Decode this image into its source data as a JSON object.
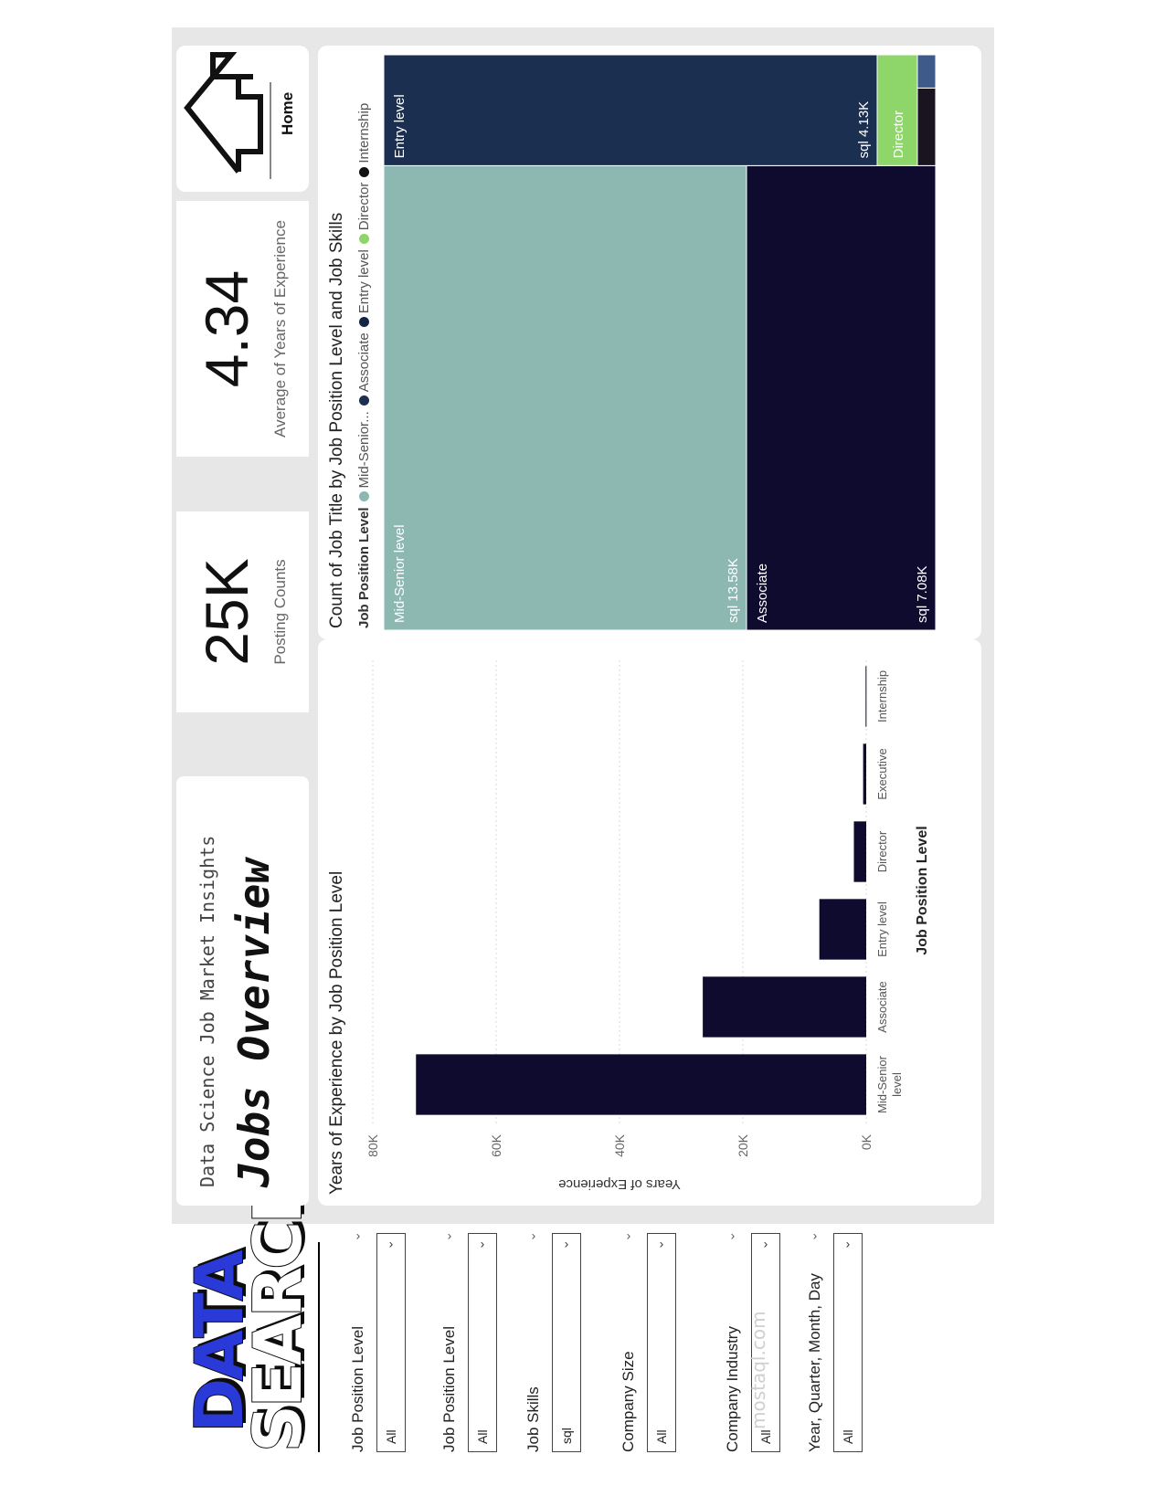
{
  "logo": {
    "line1": "DATA",
    "line2": "SEARCH"
  },
  "watermark": "mostaql.com",
  "filters": [
    {
      "label": "Job Position Level",
      "value": "All"
    },
    {
      "label": "Job Position Level",
      "value": "All"
    },
    {
      "label": "Job Skills",
      "value": "sql"
    },
    {
      "label": "Company Size",
      "value": "All"
    },
    {
      "label": "Company Industry",
      "value": "All"
    },
    {
      "label": "Year, Quarter, Month, Day",
      "value": "All"
    }
  ],
  "header": {
    "subtitle": "Data Science Job Market Insights",
    "title": "Jobs Overview",
    "home_label": "Home"
  },
  "kpis": [
    {
      "value": "25K",
      "label": "Posting Counts"
    },
    {
      "value": "4.34",
      "label": "Average of Years of Experience"
    }
  ],
  "colors": {
    "mid_senior": "#8cb8b1",
    "associate": "#0e0b2f",
    "entry": "#1b2f50",
    "director": "#8fd66a",
    "internship": "#1a1320",
    "bar": "#0e0b2f",
    "executive_tile": "#3e5a8a"
  },
  "bar_chart": {
    "title": "Years of Experience by Job Position Level",
    "chart_data": {
      "type": "bar",
      "title": "Years of Experience by Job Position Level",
      "xlabel": "Job Position Level",
      "ylabel": "Years of Experience",
      "categories": [
        "Mid-Senior level",
        "Associate",
        "Entry level",
        "Director",
        "Executive",
        "Internship"
      ],
      "values": [
        73000,
        26500,
        7600,
        2000,
        500,
        100
      ],
      "ylim": [
        0,
        80000
      ],
      "y_ticks": [
        "0K",
        "20K",
        "40K",
        "60K",
        "80K"
      ],
      "grid": true
    }
  },
  "treemap": {
    "title": "Count of Job Title by Job Position Level and Job Skills",
    "legend_title": "Job Position Level",
    "legend": [
      {
        "name": "Mid-Senior...",
        "color": "#8cb8b1"
      },
      {
        "name": "Associate",
        "color": "#1b2f50"
      },
      {
        "name": "Entry level",
        "color": "#14244a"
      },
      {
        "name": "Director",
        "color": "#8fd66a"
      },
      {
        "name": "Internship",
        "color": "#111111"
      }
    ],
    "chart_data": {
      "type": "treemap",
      "title": "Count of Job Title by Job Position Level and Job Skills",
      "nodes": [
        {
          "group": "Mid-Senior level",
          "skill": "sql",
          "value_label": "sql 13.58K",
          "value": 13580
        },
        {
          "group": "Associate",
          "skill": "sql",
          "value_label": "sql 7.08K",
          "value": 7080
        },
        {
          "group": "Entry level",
          "skill": "sql",
          "value_label": "sql 4.13K",
          "value": 4130
        },
        {
          "group": "Director",
          "skill": "sql",
          "value": 600
        },
        {
          "group": "Internship",
          "skill": "sql",
          "value": 120
        },
        {
          "group": "Executive",
          "skill": "sql",
          "value": 80
        }
      ]
    }
  }
}
